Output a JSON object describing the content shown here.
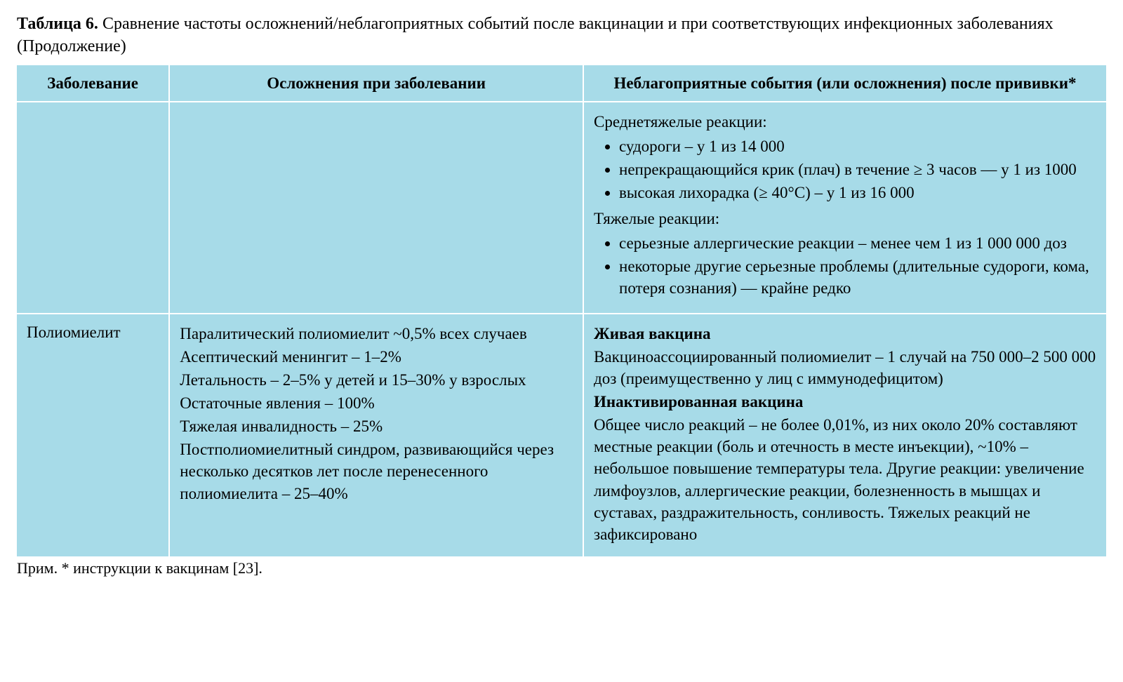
{
  "colors": {
    "table_bg": "#a7dbe8",
    "cell_border": "#ffffff",
    "text": "#000000",
    "page_bg": "#ffffff"
  },
  "typography": {
    "font_family": "Times New Roman",
    "caption_fontsize_pt": 18,
    "body_fontsize_pt": 17
  },
  "caption": {
    "lead": "Таблица 6.",
    "rest": " Сравнение частоты осложнений/неблагоприятных событий после вакцинации и при соответствующих инфекционных заболеваниях (Продолжение)"
  },
  "columns": [
    {
      "key": "disease",
      "label": "Заболевание",
      "width_pct": 14,
      "align": "center"
    },
    {
      "key": "compl",
      "label": "Осложнения при заболевании",
      "width_pct": 38,
      "align": "center"
    },
    {
      "key": "vacc",
      "label": "Неблагоприятные события (или осложнения) после прививки*",
      "width_pct": 48,
      "align": "center"
    }
  ],
  "rows": {
    "r0": {
      "disease": "",
      "compl_lines": [],
      "vacc": {
        "mod_header": "Среднетяжелые реакции:",
        "mod_items": [
          "судороги – у 1 из 14 000",
          "непрекращающийся крик (плач) в течение ≥ 3 часов — у 1 из 1000",
          "высокая лихорадка (≥ 40°C) – у 1 из 16 000"
        ],
        "sev_header": "Тяжелые реакции:",
        "sev_items": [
          "серьезные аллергические реакции – менее чем 1 из 1 000 000 доз",
          "некоторые другие серьезные проблемы (длительные судороги, кома, потеря сознания) — крайне редко"
        ]
      }
    },
    "r1": {
      "disease": "Полиомиелит",
      "compl_lines": [
        "Паралитический полиомиелит ~0,5% всех случаев",
        "Асептический менингит – 1–2%",
        "Летальность – 2–5% у детей и 15–30% у взрослых",
        "Остаточные явления – 100%",
        "Тяжелая инвалидность – 25%",
        "Постполиомиелитный синдром, развивающийся через несколько десятков лет после перенесенного полиомиелита – 25–40%"
      ],
      "vacc": {
        "live_header": "Живая вакцина",
        "live_text": "Вакциноассоциированный полиомиелит – 1 случай на 750 000–2 500 000 доз (преимущественно у лиц с иммунодефицитом)",
        "inact_header": "Инактивированная вакцина",
        "inact_text": "Общее число реакций – не более 0,01%, из них около 20% составляют местные реакции (боль и отечность в месте инъекции), ~10% – небольшое повышение температуры тела. Другие реакции: увеличение лимфоузлов, аллергические реакции, болезненность в мышцах и суставах, раздражительность, сонливость. Тяжелых реакций не зафиксировано"
      }
    }
  },
  "footnote": "Прим. * инструкции к вакцинам [23]."
}
